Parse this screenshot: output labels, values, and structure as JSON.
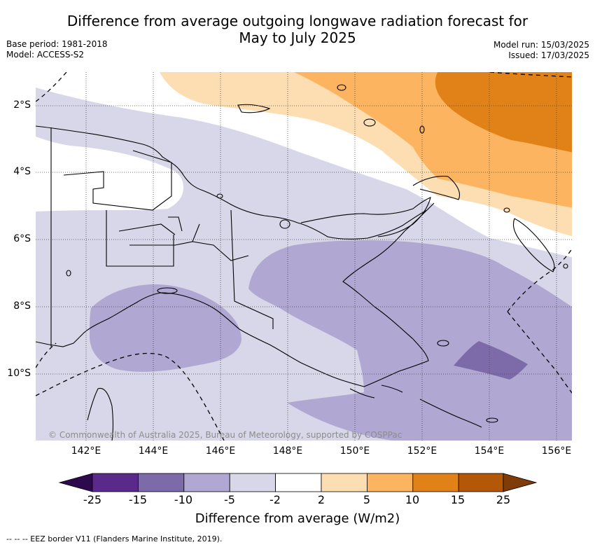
{
  "title_line1": "Difference from average outgoing longwave radiation forecast for",
  "title_line2": "May to July 2025",
  "base_period": "Base period: 1981-2018",
  "model": "Model: ACCESS-S2",
  "model_run": "Model run: 15/03/2025",
  "issued": "Issued: 17/03/2025",
  "copyright": "© Commonwealth of Australia 2025, Bureau of Meteorology, supported by COSPPac",
  "footnote": "--  --  -- EEZ border V11 (Flanders Marine Institute, 2019).",
  "x_ticks": [
    "142°E",
    "144°E",
    "146°E",
    "148°E",
    "150°E",
    "152°E",
    "154°E",
    "156°E"
  ],
  "y_ticks": [
    "2°S",
    "4°S",
    "6°S",
    "8°S",
    "10°S"
  ],
  "colorbar": {
    "label": "Difference from average (W/m2)",
    "ticks": [
      "-25",
      "-15",
      "-10",
      "-5",
      "-2",
      "2",
      "5",
      "10",
      "15",
      "25"
    ],
    "colors": [
      "#2d0a4d",
      "#5a2a8a",
      "#7d6ba9",
      "#b0a8d2",
      "#d7d7e9",
      "#ffffff",
      "#fddeb2",
      "#fdb461",
      "#e08217",
      "#b35806",
      "#7f3b08"
    ]
  },
  "map": {
    "lon_range": [
      140.8,
      156.5
    ],
    "lat_range": [
      -12.0,
      -1.0
    ],
    "colors": {
      "orange_dark": "#e08217",
      "orange_mid": "#fdb461",
      "orange_light": "#fddeb2",
      "purple_light": "#d7d7e9",
      "purple_mid": "#b0a8d2",
      "purple_dark": "#7d6ba9"
    }
  }
}
